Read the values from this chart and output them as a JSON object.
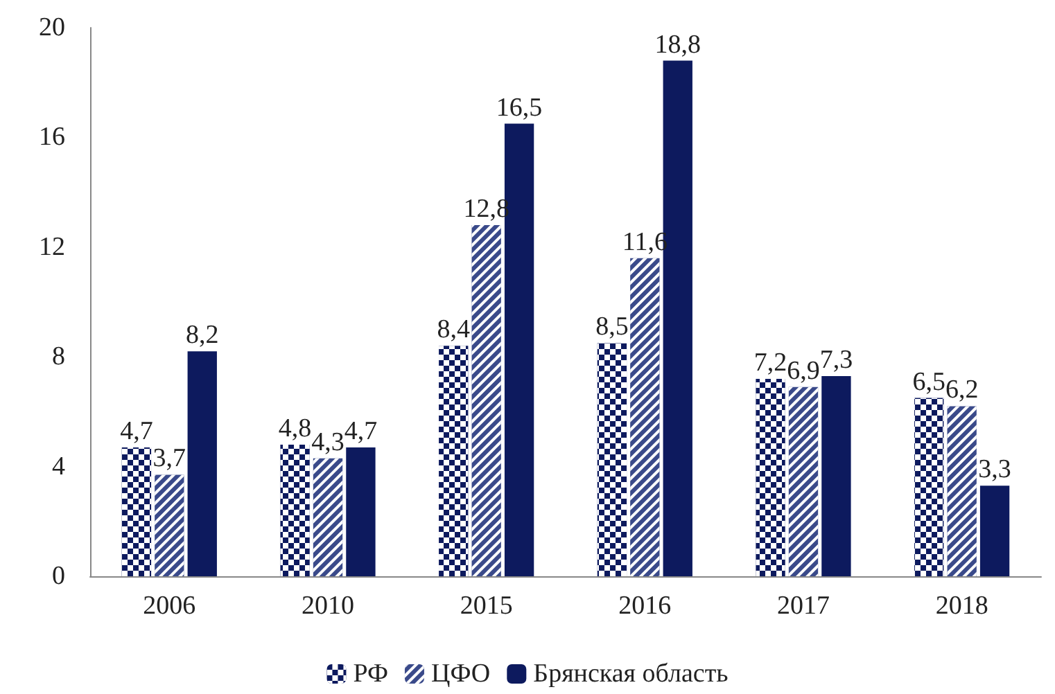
{
  "chart_data": {
    "type": "bar",
    "categories": [
      "2006",
      "2010",
      "2015",
      "2016",
      "2017",
      "2018"
    ],
    "series": [
      {
        "name": "РФ",
        "color": "#0d1a5e",
        "values": [
          4.7,
          4.8,
          8.4,
          8.5,
          7.2,
          6.5
        ],
        "value_labels": [
          "4,7",
          "4,8",
          "8,4",
          "8,5",
          "7,2",
          "6,5"
        ]
      },
      {
        "name": "ЦФО",
        "color": "#3a4a8a",
        "values": [
          3.7,
          4.3,
          12.8,
          11.6,
          6.9,
          6.2
        ],
        "value_labels": [
          "3,7",
          "4,3",
          "12,8",
          "11,6",
          "6,9",
          "6,2"
        ]
      },
      {
        "name": "Брянская область",
        "color": "#0d1a5e",
        "values": [
          8.2,
          4.7,
          16.5,
          18.8,
          7.3,
          3.3
        ],
        "value_labels": [
          "8,2",
          "4,7",
          "16,5",
          "18,8",
          "7,3",
          "3,3"
        ]
      }
    ],
    "ylim": [
      0,
      20
    ],
    "yticks": [
      0,
      4,
      8,
      12,
      16,
      20
    ],
    "grid": false,
    "legend": "bottom"
  }
}
